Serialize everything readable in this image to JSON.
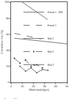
{
  "chart_data": {
    "type": "line",
    "x_label": "Work load (kg/s)",
    "y_label": "Cumulative risk (%)",
    "caption": "Figure 4.2",
    "xlim": [
      0,
      50
    ],
    "xticks": [
      0,
      10,
      20,
      30,
      40,
      50
    ],
    "ylim": [
      0,
      100
    ],
    "yticks": [
      0,
      20,
      40,
      60,
      80,
      100
    ],
    "grid": false,
    "legend": "upper right",
    "series": [
      {
        "name": "Female 1 - 1986",
        "color": "#555555",
        "line_style": "solid",
        "marker": "none",
        "x": [
          10,
          33
        ],
        "values": [
          100,
          78
        ]
      },
      {
        "name": "Female 2",
        "color": "#555555",
        "line_style": "dashed",
        "marker": "none",
        "x": [
          3,
          27
        ],
        "values": [
          61,
          54
        ]
      },
      {
        "name": "Male 1",
        "color": "#555555",
        "line_style": "solid",
        "marker": "none",
        "x": [
          3,
          50
        ],
        "values": [
          55,
          48
        ]
      },
      {
        "name": "Male 2",
        "color": "#555555",
        "line_style": "dashed",
        "marker": "square",
        "x": [
          3,
          8,
          13,
          18,
          23,
          28
        ],
        "values": [
          30,
          24,
          28,
          20,
          22,
          18
        ]
      },
      {
        "name": "Male 3",
        "color": "#555555",
        "line_style": "solid",
        "marker": "circle",
        "x": [
          8,
          13,
          18,
          23,
          28,
          33
        ],
        "values": [
          20,
          14,
          18,
          12,
          16,
          15
        ]
      }
    ]
  }
}
